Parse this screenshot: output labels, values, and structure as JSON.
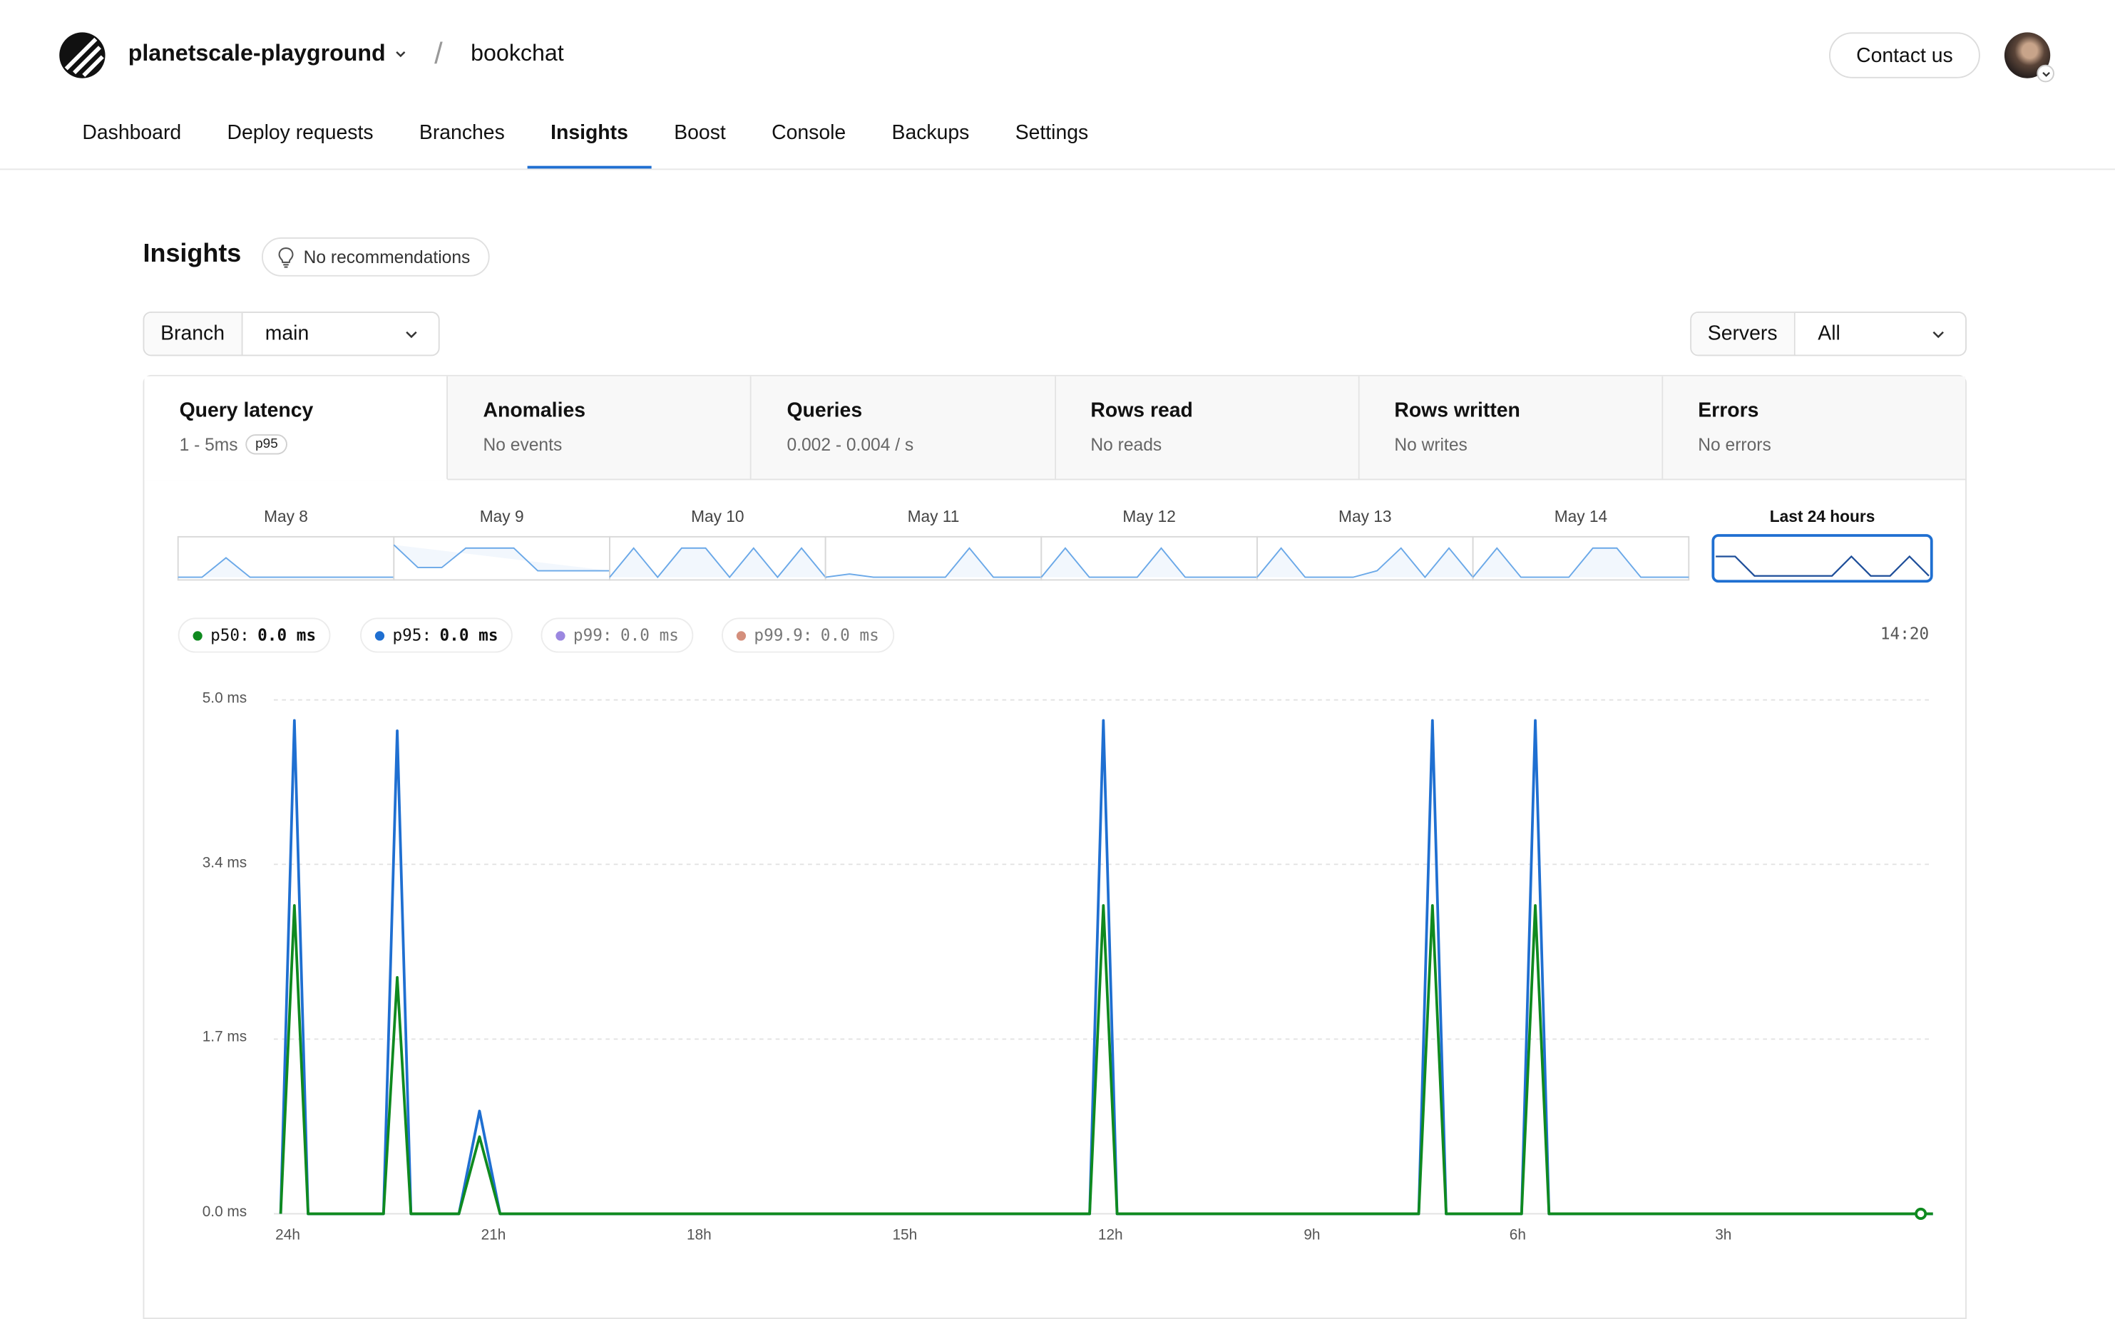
{
  "header": {
    "org_name": "planetscale-playground",
    "separator": "/",
    "database_name": "bookchat",
    "contact_label": "Contact us"
  },
  "nav": {
    "tabs": [
      {
        "label": "Dashboard",
        "active": false
      },
      {
        "label": "Deploy requests",
        "active": false
      },
      {
        "label": "Branches",
        "active": false
      },
      {
        "label": "Insights",
        "active": true
      },
      {
        "label": "Boost",
        "active": false
      },
      {
        "label": "Console",
        "active": false
      },
      {
        "label": "Backups",
        "active": false
      },
      {
        "label": "Settings",
        "active": false
      }
    ]
  },
  "page": {
    "title": "Insights",
    "recommendations": "No recommendations",
    "branch_label": "Branch",
    "branch_value": "main",
    "servers_label": "Servers",
    "servers_value": "All"
  },
  "metrics": [
    {
      "title": "Query latency",
      "subtitle": "1 - 5ms",
      "badge": "p95",
      "active": true
    },
    {
      "title": "Anomalies",
      "subtitle": "No events"
    },
    {
      "title": "Queries",
      "subtitle": "0.002 - 0.004 / s"
    },
    {
      "title": "Rows read",
      "subtitle": "No reads"
    },
    {
      "title": "Rows written",
      "subtitle": "No writes"
    },
    {
      "title": "Errors",
      "subtitle": "No errors"
    }
  ],
  "timeline": {
    "days": [
      "May 8",
      "May 9",
      "May 10",
      "May 11",
      "May 12",
      "May 13",
      "May 14"
    ],
    "selected": "Last 24 hours"
  },
  "legend": [
    {
      "label": "p50:",
      "value": "0.0 ms",
      "color": "#0f8a1f",
      "active": true
    },
    {
      "label": "p95:",
      "value": "0.0 ms",
      "color": "#1f6fd1",
      "active": true
    },
    {
      "label": "p99:",
      "value": "0.0 ms",
      "color": "#9b87e0",
      "active": false
    },
    {
      "label": "p99.9:",
      "value": "0.0 ms",
      "color": "#d48f7c",
      "active": false
    }
  ],
  "cursor_time": "14:20",
  "chart_data": {
    "type": "line",
    "title": "",
    "xlabel": "",
    "ylabel": "",
    "x_unit": "hours ago",
    "x_ticks": [
      "24h",
      "21h",
      "18h",
      "15h",
      "12h",
      "9h",
      "6h",
      "3h"
    ],
    "y_ticks": [
      "5.0 ms",
      "3.4 ms",
      "1.7 ms",
      "0.0 ms"
    ],
    "ylim": [
      0,
      5.0
    ],
    "xlim": [
      24.2,
      0
    ],
    "grid": true,
    "series": [
      {
        "name": "p95",
        "color": "#1f6fd1",
        "x": [
          24.1,
          23.9,
          23.7,
          23.5,
          22.6,
          22.4,
          22.2,
          21.8,
          21.5,
          21.2,
          20.9,
          12.3,
          12.1,
          11.9,
          7.5,
          7.3,
          7.1,
          6.0,
          5.8,
          5.6,
          0
        ],
        "y": [
          0,
          4.8,
          0,
          0,
          0,
          4.7,
          0,
          0,
          0,
          1.0,
          0,
          0,
          4.8,
          0,
          0,
          4.8,
          0,
          0,
          4.8,
          0,
          0
        ]
      },
      {
        "name": "p50",
        "color": "#0f8a1f",
        "x": [
          24.1,
          23.9,
          23.7,
          23.5,
          22.6,
          22.4,
          22.2,
          21.8,
          21.5,
          21.2,
          20.9,
          12.3,
          12.1,
          11.9,
          7.5,
          7.3,
          7.1,
          6.0,
          5.8,
          5.6,
          0
        ],
        "y": [
          0,
          3.0,
          0,
          0,
          0,
          2.3,
          0,
          0,
          0,
          0.75,
          0,
          0,
          3.0,
          0,
          0,
          3.0,
          0,
          0,
          3.0,
          0,
          0
        ]
      }
    ]
  }
}
